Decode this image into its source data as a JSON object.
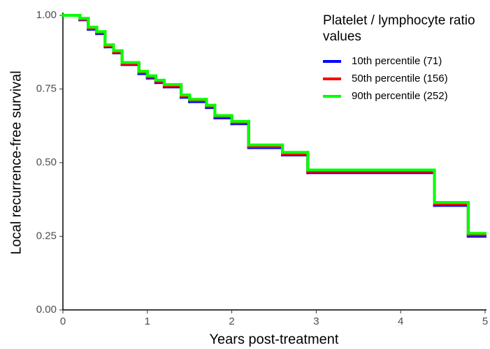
{
  "chart_data": {
    "type": "line",
    "drawstyle": "steps-post",
    "xlabel": "Years post-treatment",
    "ylabel": "Local recurrence-free survival",
    "legend_title": "Platelet / lymphocyte ratio values",
    "legend_position": "top-right",
    "x": [
      0,
      0.2,
      0.3,
      0.4,
      0.5,
      0.6,
      0.7,
      0.9,
      1.0,
      1.1,
      1.2,
      1.4,
      1.5,
      1.7,
      1.8,
      2.0,
      2.2,
      2.6,
      2.9,
      4.4,
      4.8
    ],
    "series": [
      {
        "name": "10th percentile (71)",
        "color": "#0000ff",
        "values": [
          1.0,
          0.985,
          0.953,
          0.938,
          0.893,
          0.873,
          0.833,
          0.802,
          0.787,
          0.772,
          0.757,
          0.722,
          0.707,
          0.687,
          0.652,
          0.632,
          0.551,
          0.526,
          0.466,
          0.355,
          0.25
        ]
      },
      {
        "name": "50th percentile (156)",
        "color": "#ff0000",
        "values": [
          1.0,
          0.987,
          0.956,
          0.941,
          0.896,
          0.876,
          0.836,
          0.806,
          0.791,
          0.776,
          0.761,
          0.726,
          0.711,
          0.691,
          0.656,
          0.636,
          0.555,
          0.53,
          0.47,
          0.36,
          0.255
        ]
      },
      {
        "name": "90th percentile (252)",
        "color": "#00ff00",
        "values": [
          1.0,
          0.99,
          0.96,
          0.945,
          0.9,
          0.88,
          0.84,
          0.81,
          0.795,
          0.78,
          0.765,
          0.73,
          0.715,
          0.695,
          0.66,
          0.64,
          0.56,
          0.535,
          0.475,
          0.365,
          0.26
        ]
      }
    ],
    "xlim": [
      0,
      5
    ],
    "xticks": [
      0,
      1,
      2,
      3,
      4,
      5
    ],
    "ylim": [
      0,
      1
    ],
    "yticks": [
      {
        "value": 0,
        "label": "0.00"
      },
      {
        "value": 0.25,
        "label": "0.25"
      },
      {
        "value": 0.5,
        "label": "0.50"
      },
      {
        "value": 0.75,
        "label": "0.75"
      },
      {
        "value": 1,
        "label": "1.00"
      }
    ],
    "grid": false
  }
}
